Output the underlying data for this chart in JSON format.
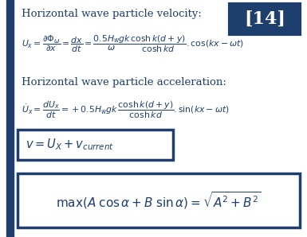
{
  "background_color": "#ffffff",
  "border_color": "#1e3f6e",
  "text_color": "#1e3f6e",
  "left_bar_color": "#1e3f6e",
  "ref_box_bg": "#1e3f6e",
  "ref_label": "[14]",
  "title1": "Horizontal wave particle velocity:",
  "title2": "Horizontal wave particle acceleration:",
  "fig_width": 3.85,
  "fig_height": 2.98,
  "dpi": 100
}
